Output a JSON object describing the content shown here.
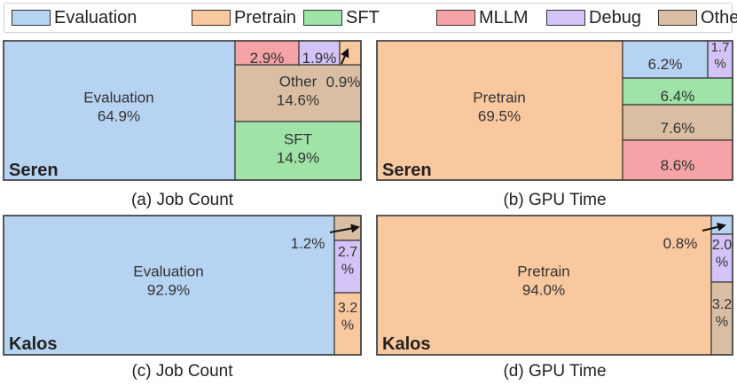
{
  "legend": [
    {
      "name": "Evaluation",
      "color": "#b7d3f2"
    },
    {
      "name": "Pretrain",
      "color": "#f9c89e"
    },
    {
      "name": "SFT",
      "color": "#9fe3a6"
    },
    {
      "name": "MLLM",
      "color": "#f5a3a6"
    },
    {
      "name": "Debug",
      "color": "#d3c3f7"
    },
    {
      "name": "Other",
      "color": "#d9bea3"
    }
  ],
  "chart_data": [
    {
      "type": "treemap",
      "title": "(a) Job Count",
      "cluster": "Seren",
      "categories": [
        "Evaluation",
        "Other",
        "SFT",
        "MLLM",
        "Debug",
        "Pretrain"
      ],
      "values": [
        64.9,
        14.6,
        14.9,
        2.9,
        1.9,
        0.9
      ],
      "labels": [
        "Evaluation\n64.9%",
        "Other\n14.6%",
        "SFT\n14.9%",
        "2.9%",
        "1.9%",
        "0.9%"
      ]
    },
    {
      "type": "treemap",
      "title": "(b) GPU Time",
      "cluster": "Seren",
      "categories": [
        "Pretrain",
        "Evaluation",
        "Debug",
        "SFT",
        "Other",
        "MLLM"
      ],
      "values": [
        69.5,
        6.2,
        1.7,
        6.4,
        7.6,
        8.6
      ],
      "labels": [
        "Pretrain\n69.5%",
        "6.2%",
        "1.7\n%",
        "6.4%",
        "7.6%",
        "8.6%"
      ]
    },
    {
      "type": "treemap",
      "title": "(c) Job Count",
      "cluster": "Kalos",
      "categories": [
        "Evaluation",
        "Other",
        "Debug",
        "Pretrain"
      ],
      "values": [
        92.9,
        1.2,
        2.7,
        3.2
      ],
      "labels": [
        "Evaluation\n92.9%",
        "1.2%",
        "2.7\n%",
        "3.2\n%"
      ]
    },
    {
      "type": "treemap",
      "title": "(d) GPU Time",
      "cluster": "Kalos",
      "categories": [
        "Pretrain",
        "Evaluation",
        "Debug",
        "Other"
      ],
      "values": [
        94.0,
        0.8,
        2.0,
        3.2
      ],
      "labels": [
        "Pretrain\n94.0%",
        "0.8%",
        "2.0\n%",
        "3.2\n%"
      ]
    }
  ]
}
